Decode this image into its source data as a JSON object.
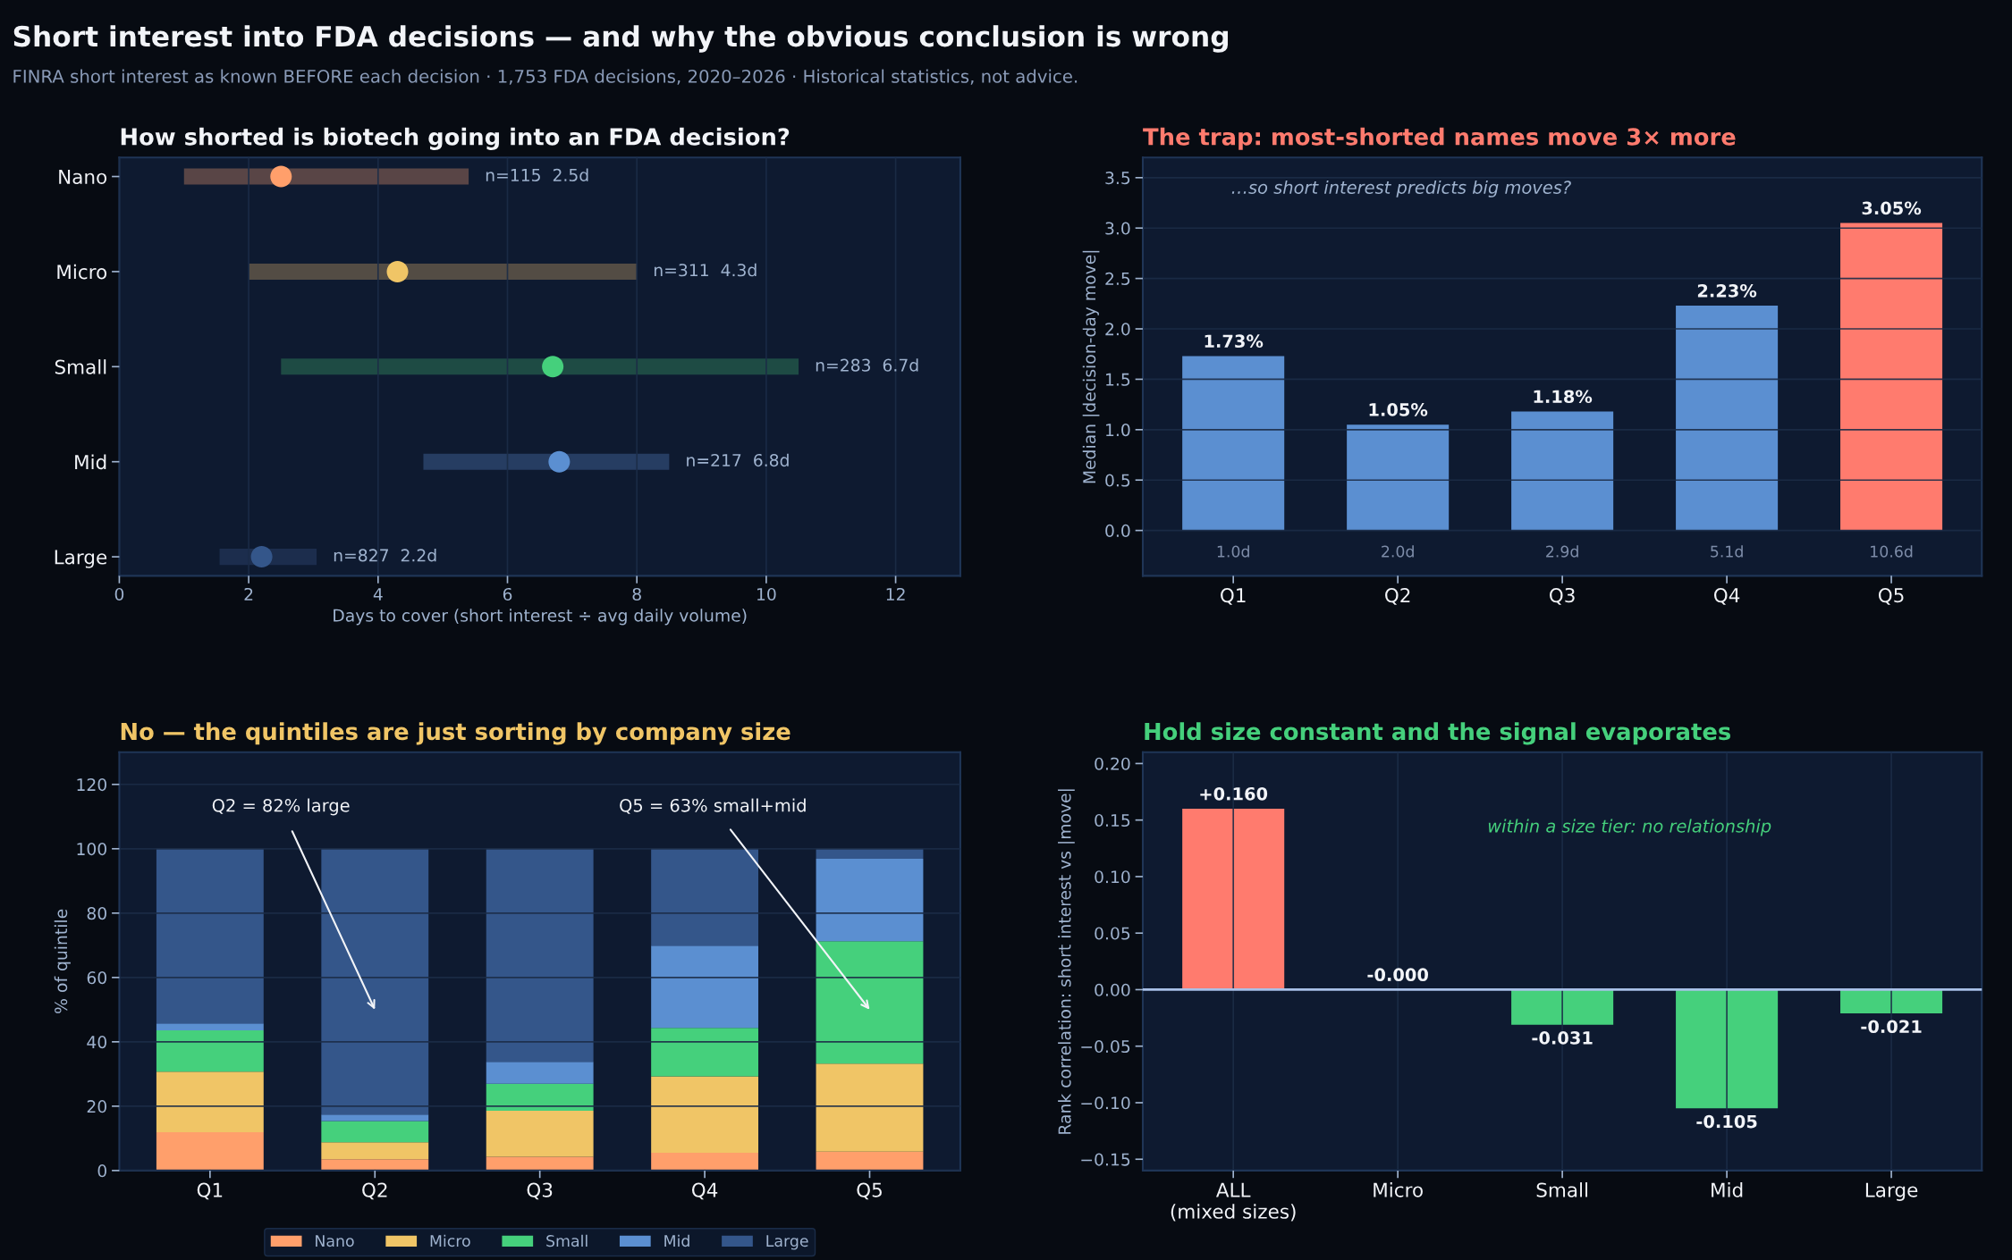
{
  "chart_data": [
    {
      "type": "other",
      "title": "Short interest into FDA decisions — and why the obvious conclusion is wrong",
      "subtitle": "FINRA short interest as known BEFORE each decision · 1,753 FDA decisions, 2020–2026 · Historical statistics, not advice."
    },
    {
      "type": "bar",
      "orientation": "horizontal",
      "title": "How shorted is biotech going into an FDA decision?",
      "xlabel": "Days to cover (short interest ÷ avg daily volume)",
      "categories": [
        "Nano",
        "Micro",
        "Small",
        "Mid",
        "Large"
      ],
      "series": [
        {
          "type": "bar",
          "base": [
            1.0,
            2.0,
            2.5,
            4.7,
            1.55
          ],
          "colors": [
            "#594546",
            "#534c44",
            "#1e4b44",
            "#263d62",
            "#1c2d4d"
          ],
          "values": [
            4.4,
            6.0,
            8.0,
            3.8,
            1.5
          ]
        },
        {
          "type": "scatter",
          "x": [
            "Nano",
            "Micro",
            "Small",
            "Mid",
            "Large"
          ],
          "colors": [
            "#ff9f6b",
            "#f0c566",
            "#45d07c",
            "#5b8fd1",
            "#34568a"
          ],
          "values": [
            2.5,
            4.3,
            6.7,
            6.8,
            2.2
          ]
        }
      ],
      "annotations": [
        "n=115  2.5d",
        "n=311  4.3d",
        "n=283  6.7d",
        "n=217  6.8d",
        "n=827  2.2d"
      ],
      "marker": "circle",
      "xlim": [
        0,
        13
      ],
      "xticks": [
        0,
        2,
        4,
        6,
        8,
        10,
        12
      ],
      "grid": "x"
    },
    {
      "type": "bar",
      "title": "The trap: most-shorted names move 3× more",
      "ylabel": "Median |decision-day move|",
      "categories": [
        "Q1",
        "Q2",
        "Q3",
        "Q4",
        "Q5"
      ],
      "values": [
        1.73,
        1.05,
        1.18,
        2.23,
        3.05
      ],
      "colors": [
        "#5b8fd1",
        "#5b8fd1",
        "#5b8fd1",
        "#5b8fd1",
        "#ff7b6e"
      ],
      "value_labels": [
        "1.73%",
        "1.05%",
        "1.18%",
        "2.23%",
        "3.05%"
      ],
      "ylim": [
        -0.45,
        3.7
      ],
      "yticks": [
        {
          "value": 0,
          "label": "0.0"
        },
        {
          "value": 0.5,
          "label": "0.5"
        },
        {
          "value": 1,
          "label": "1.0"
        },
        {
          "value": 1.5,
          "label": "1.5"
        },
        {
          "value": 2,
          "label": "2.0"
        },
        {
          "value": 2.5,
          "label": "2.5"
        },
        {
          "value": 3,
          "label": "3.0"
        },
        {
          "value": 3.5,
          "label": "3.5"
        }
      ],
      "grid": "y",
      "annotations": [
        "…so short interest predicts big moves?",
        "1.0d",
        "2.0d",
        "2.9d",
        "5.1d",
        "10.6d"
      ]
    },
    {
      "type": "bar",
      "stacked": true,
      "title": "No — the quintiles are just sorting by company size",
      "ylabel": "% of quintile",
      "categories": [
        "Q1",
        "Q2",
        "Q3",
        "Q4",
        "Q5"
      ],
      "series": [
        {
          "name": "Nano",
          "color": "#ff9f6b",
          "values": [
            11.9,
            3.5,
            4.3,
            5.5,
            5.9
          ]
        },
        {
          "name": "Micro",
          "color": "#f0c566",
          "values": [
            18.8,
            5.3,
            14.3,
            23.8,
            27.3
          ]
        },
        {
          "name": "Small",
          "color": "#45d07c",
          "values": [
            12.9,
            6.6,
            8.4,
            15.0,
            38.1
          ]
        },
        {
          "name": "Mid",
          "color": "#5b8fd1",
          "values": [
            2.1,
            2.0,
            6.8,
            25.6,
            25.6
          ]
        },
        {
          "name": "Large",
          "color": "#34568a",
          "values": [
            54.3,
            82.6,
            66.2,
            30.1,
            3.1
          ]
        }
      ],
      "ylim": [
        0,
        130
      ],
      "yticks": [
        0,
        20,
        40,
        60,
        80,
        100,
        120
      ],
      "grid": "y",
      "legend": "bottom",
      "annotations": [
        "Q2 = 82% large",
        "Q5 = 63% small+mid"
      ]
    },
    {
      "type": "bar",
      "title": "Hold size constant and the signal evaporates",
      "ylabel": "Rank correlation: short interest vs |move|",
      "categories": [
        "ALL\n(mixed sizes)",
        "Micro",
        "Small",
        "Mid",
        "Large"
      ],
      "values": [
        0.16,
        0,
        -0.031,
        -0.105,
        -0.021
      ],
      "colors": [
        "#ff7b6e",
        "#45d07c",
        "#45d07c",
        "#45d07c",
        "#45d07c"
      ],
      "value_labels": [
        "+0.160",
        "-0.000",
        "-0.031",
        "-0.105",
        "-0.021"
      ],
      "ylim": [
        -0.16,
        0.21
      ],
      "yticks": [
        {
          "value": -0.15,
          "label": "−0.15"
        },
        {
          "value": -0.1,
          "label": "−0.10"
        },
        {
          "value": -0.05,
          "label": "−0.05"
        },
        {
          "value": 0,
          "label": "0.00"
        },
        {
          "value": 0.05,
          "label": "0.05"
        },
        {
          "value": 0.1,
          "label": "0.10"
        },
        {
          "value": 0.15,
          "label": "0.15"
        },
        {
          "value": 0.2,
          "label": "0.20"
        }
      ],
      "grid": "x",
      "ref_lines": [
        {
          "axis": "y",
          "value": 0,
          "color": "#a9c1e8"
        }
      ],
      "annotations": [
        "within a size tier: no relationship"
      ]
    }
  ]
}
